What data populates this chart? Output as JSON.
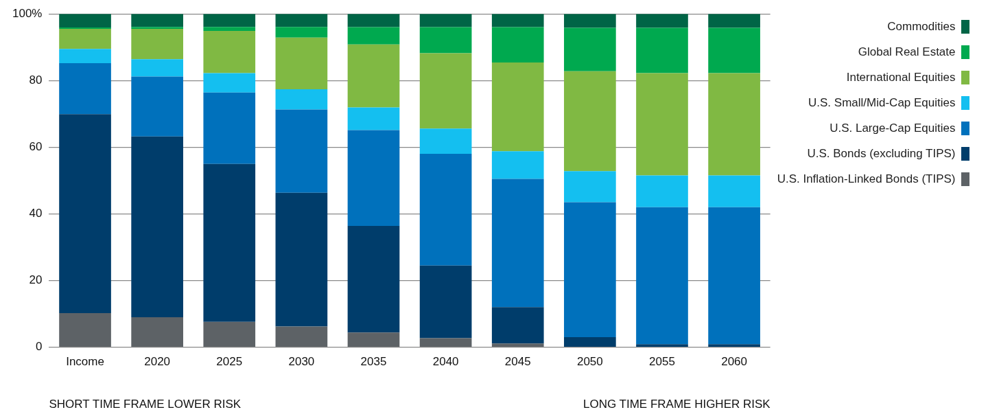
{
  "chart_data": {
    "type": "bar",
    "stacked": true,
    "categories": [
      "Income",
      "2020",
      "2025",
      "2030",
      "2035",
      "2040",
      "2045",
      "2050",
      "2055",
      "2060"
    ],
    "series": [
      {
        "name": "U.S. Inflation-Linked Bonds (TIPS)",
        "color": "#5d6266",
        "values": [
          10.2,
          9.0,
          7.6,
          6.2,
          4.4,
          2.7,
          1.1,
          0,
          0,
          0
        ]
      },
      {
        "name": "U.S. Bonds (excluding TIPS)",
        "color": "#003d6b",
        "values": [
          59.7,
          54.2,
          47.4,
          40.1,
          32.0,
          21.8,
          10.9,
          3.0,
          0.9,
          0.9
        ]
      },
      {
        "name": "U.S. Large-Cap Equities",
        "color": "#0071bc",
        "values": [
          15.3,
          18.0,
          21.4,
          25.0,
          28.7,
          33.5,
          38.5,
          40.5,
          41.1,
          41.1
        ]
      },
      {
        "name": "U.S. Small/Mid-Cap Equities",
        "color": "#14bff0",
        "values": [
          4.3,
          5.2,
          5.8,
          6.1,
          6.8,
          7.6,
          8.3,
          9.3,
          9.5,
          9.5
        ]
      },
      {
        "name": "International Equities",
        "color": "#80b943",
        "values": [
          6.0,
          9.1,
          12.7,
          15.5,
          18.9,
          22.6,
          26.6,
          30.0,
          30.7,
          30.7
        ]
      },
      {
        "name": "Global Real Estate",
        "color": "#00a94f",
        "values": [
          0.4,
          0.6,
          1.2,
          3.2,
          5.2,
          7.8,
          10.6,
          13.0,
          13.6,
          13.6
        ]
      },
      {
        "name": "Commodities",
        "color": "#006546",
        "values": [
          4.1,
          3.9,
          3.9,
          3.9,
          4.0,
          4.0,
          4.0,
          4.2,
          4.2,
          4.2
        ]
      }
    ],
    "ylim": [
      0,
      100
    ],
    "yticks": [
      0,
      20,
      40,
      60,
      80,
      {
        "value": 100,
        "label": "100%"
      }
    ],
    "grid": "y",
    "legend": "right",
    "annotations": [
      "SHORT TIME FRAME LOWER RISK",
      "LONG TIME FRAME HIGHER RISK"
    ]
  }
}
